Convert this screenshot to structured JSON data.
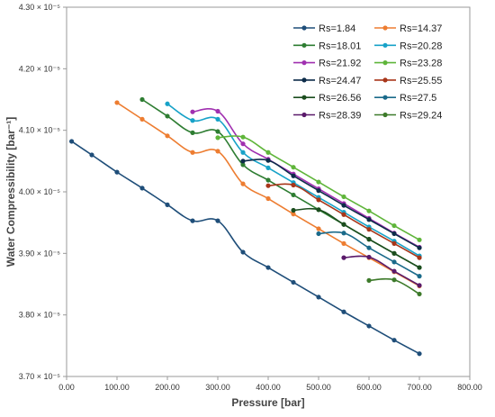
{
  "chart_data": {
    "type": "line",
    "xlabel": "Pressure [bar]",
    "ylabel": "Water Compressibility [bar⁻¹]",
    "xlim": [
      0,
      800
    ],
    "ylim": [
      3.7,
      4.3
    ],
    "x_ticks": [
      {
        "value": 0,
        "label": "0.00"
      },
      {
        "value": 100,
        "label": "100.00"
      },
      {
        "value": 200,
        "label": "200.00"
      },
      {
        "value": 300,
        "label": "300.00"
      },
      {
        "value": 400,
        "label": "400.00"
      },
      {
        "value": 500,
        "label": "500.00"
      },
      {
        "value": 600,
        "label": "600.00"
      },
      {
        "value": 700,
        "label": "700.00"
      },
      {
        "value": 800,
        "label": "800.00"
      }
    ],
    "y_ticks": [
      {
        "value": 3.7,
        "label": "3.70 × 10⁻⁵"
      },
      {
        "value": 3.8,
        "label": "3.80 × 10⁻⁵"
      },
      {
        "value": 3.9,
        "label": "3.90 × 10⁻⁵"
      },
      {
        "value": 4.0,
        "label": "4.00 × 10⁻⁵"
      },
      {
        "value": 4.1,
        "label": "4.10 × 10⁻⁵"
      },
      {
        "value": 4.2,
        "label": "4.20 × 10⁻⁵"
      },
      {
        "value": 4.3,
        "label": "4.30 × 10⁻⁵"
      }
    ],
    "grid": false,
    "legend_position": "top-right",
    "series": [
      {
        "name": "Rs=1.84",
        "color": "#1f4e79",
        "x": [
          10,
          50,
          100,
          150,
          200,
          250,
          300,
          350,
          400,
          450,
          500,
          550,
          600,
          650,
          700
        ],
        "y": [
          4.082,
          4.06,
          4.032,
          4.006,
          3.979,
          3.953,
          3.953,
          3.902,
          3.877,
          3.853,
          3.829,
          3.805,
          3.782,
          3.759,
          3.737
        ]
      },
      {
        "name": "Rs=14.37",
        "color": "#ed7d31",
        "x": [
          100,
          150,
          200,
          250,
          300,
          350,
          400,
          450,
          500,
          550,
          600,
          650,
          700
        ],
        "y": [
          4.145,
          4.118,
          4.091,
          4.064,
          4.066,
          4.013,
          3.989,
          3.964,
          3.94,
          3.916,
          3.893,
          3.87,
          3.847
        ]
      },
      {
        "name": "Rs=18.01",
        "color": "#2e7d32",
        "x": [
          150,
          200,
          250,
          300,
          350,
          400,
          450,
          500,
          550,
          600,
          650,
          700
        ],
        "y": [
          4.15,
          4.123,
          4.096,
          4.098,
          4.044,
          4.019,
          3.995,
          3.971,
          3.947,
          3.923,
          3.9,
          3.877
        ]
      },
      {
        "name": "Rs=20.28",
        "color": "#17a2c8",
        "x": [
          200,
          250,
          300,
          350,
          400,
          450,
          500,
          550,
          600,
          650,
          700
        ],
        "y": [
          4.143,
          4.116,
          4.118,
          4.064,
          4.039,
          4.015,
          3.991,
          3.967,
          3.943,
          3.92,
          3.896
        ]
      },
      {
        "name": "Rs=21.92",
        "color": "#a030b0",
        "x": [
          250,
          300,
          350,
          400,
          450,
          500,
          550,
          600,
          650,
          700
        ],
        "y": [
          4.13,
          4.131,
          4.078,
          4.053,
          4.029,
          4.005,
          3.981,
          3.957,
          3.933,
          3.91
        ]
      },
      {
        "name": "Rs=23.28",
        "color": "#5fb53a",
        "x": [
          300,
          350,
          400,
          450,
          500,
          550,
          600,
          650,
          700
        ],
        "y": [
          4.088,
          4.089,
          4.064,
          4.04,
          4.016,
          3.992,
          3.969,
          3.945,
          3.922
        ]
      },
      {
        "name": "Rs=24.47",
        "color": "#0d2c4a",
        "x": [
          350,
          400,
          450,
          500,
          550,
          600,
          650,
          700
        ],
        "y": [
          4.05,
          4.051,
          4.026,
          4.002,
          3.978,
          3.955,
          3.932,
          3.909
        ]
      },
      {
        "name": "Rs=25.55",
        "color": "#a8361a",
        "x": [
          400,
          450,
          500,
          550,
          600,
          650,
          700
        ],
        "y": [
          4.01,
          4.011,
          3.987,
          3.963,
          3.939,
          3.916,
          3.893
        ]
      },
      {
        "name": "Rs=26.56",
        "color": "#1b4d1e",
        "x": [
          450,
          500,
          550,
          600,
          650,
          700
        ],
        "y": [
          3.97,
          3.971,
          3.947,
          3.923,
          3.9,
          3.877
        ]
      },
      {
        "name": "Rs=27.5",
        "color": "#1a6a8a",
        "x": [
          500,
          550,
          600,
          650,
          700
        ],
        "y": [
          3.932,
          3.933,
          3.909,
          3.886,
          3.863
        ]
      },
      {
        "name": "Rs=28.39",
        "color": "#5a1a6a",
        "x": [
          550,
          600,
          650,
          700
        ],
        "y": [
          3.893,
          3.894,
          3.871,
          3.848
        ]
      },
      {
        "name": "Rs=29.24",
        "color": "#3d7a2a",
        "x": [
          600,
          650,
          700
        ],
        "y": [
          3.856,
          3.857,
          3.834
        ]
      }
    ]
  }
}
